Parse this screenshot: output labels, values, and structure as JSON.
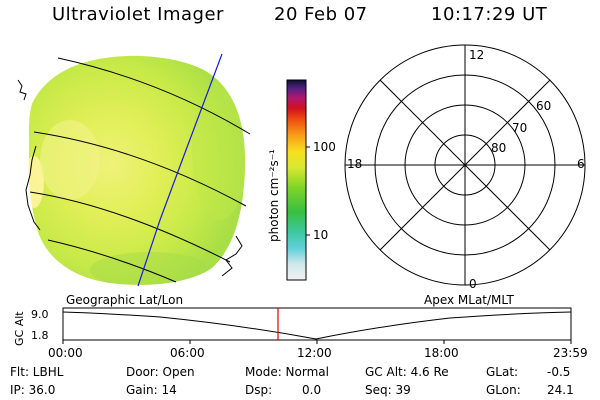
{
  "header": {
    "title": "Ultraviolet Imager",
    "date": "20 Feb 07",
    "time": "10:17:29 UT"
  },
  "colorbar": {
    "label": "photon cm⁻²s⁻¹",
    "ticks": [
      "100",
      "10"
    ]
  },
  "polar_plot": {
    "mlt_labels": {
      "top": "12",
      "left": "18",
      "right": "6",
      "bottom": "0"
    },
    "lat_labels": [
      "60",
      "70",
      "80"
    ]
  },
  "panel_labels": {
    "left": "Geographic Lat/Lon",
    "right": "Apex MLat/MLT"
  },
  "alt_strip": {
    "axis_label": "GC Alt",
    "y_ticks": [
      "9.0",
      "1.8"
    ],
    "x_ticks": [
      "00:00",
      "06:00",
      "12:00",
      "18:00",
      "23:59"
    ],
    "marker_color": "#e00000"
  },
  "status": {
    "filter": "Flt: LBHL",
    "ip": "IP: 36.0",
    "door": "Door: Open",
    "gain": "Gain: 14",
    "mode": "Mode: Normal",
    "dsp_label": "Dsp:",
    "dsp_value": "0.0",
    "gc_alt": "GC Alt: 4.6 Re",
    "seq": "Seq: 39",
    "glat_label": "GLat:",
    "glat_value": "-0.5",
    "glon_label": "GLon:",
    "glon_value": "24.1"
  }
}
